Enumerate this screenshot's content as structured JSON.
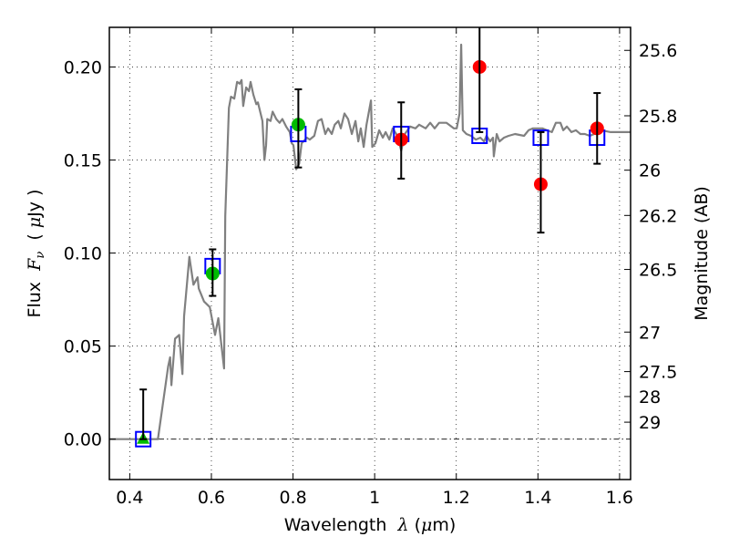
{
  "chart_data": {
    "type": "scatter",
    "title": "",
    "xlabel": "Wavelength  λ (μm)",
    "xlabel_parts": {
      "prefix": "Wavelength  ",
      "lambda": "λ",
      "suffix_open": " (",
      "mu": "μ",
      "suffix_close": "m)"
    },
    "ylabel_parts": {
      "prefix": "Flux  ",
      "var": "F",
      "sub": "ν",
      "open": "  ( ",
      "mu": "μ",
      "close": "Jy )"
    },
    "ylabel": "Flux  Fν  ( μJy )",
    "y2label": "Magnitude (AB)",
    "xlim": [
      0.35,
      1.627
    ],
    "ylim": [
      -0.0217,
      0.2213
    ],
    "grid": true,
    "x_ticks": [
      0.4,
      0.6,
      0.8,
      1.0,
      1.2,
      1.4,
      1.6
    ],
    "x_tick_labels": [
      "0.4",
      "0.6",
      "0.8",
      "1",
      "1.2",
      "1.4",
      "1.6"
    ],
    "y_ticks": [
      0.0,
      0.05,
      0.1,
      0.15,
      0.2
    ],
    "y_tick_labels": [
      "0.00",
      "0.05",
      "0.10",
      "0.15",
      "0.20"
    ],
    "y2_ticks_mag": [
      25.6,
      25.8,
      26,
      26.2,
      26.5,
      27,
      27.5,
      28,
      29
    ],
    "y2_tick_labels": [
      "25.6",
      "25.8",
      "26",
      "26.2",
      "26.5",
      "27",
      "27.5",
      "28",
      "29"
    ],
    "ab_zeropoint_ujy": 23.9,
    "zero_line": {
      "y": 0.0,
      "style": "dash-dot",
      "color": "#000000"
    },
    "colors": {
      "spectrum": "#808080",
      "model_box": "#0000ff",
      "detection_green": "#00bb00",
      "detection_red": "#ff0000",
      "errorbar": "#000000"
    },
    "series": [
      {
        "name": "model spectrum",
        "kind": "line",
        "x": [
          0.35,
          0.469,
          0.494,
          0.499,
          0.502,
          0.511,
          0.521,
          0.529,
          0.533,
          0.546,
          0.556,
          0.566,
          0.569,
          0.582,
          0.596,
          0.609,
          0.617,
          0.631,
          0.634,
          0.643,
          0.648,
          0.656,
          0.663,
          0.669,
          0.674,
          0.678,
          0.685,
          0.692,
          0.696,
          0.703,
          0.71,
          0.714,
          0.725,
          0.73,
          0.734,
          0.737,
          0.745,
          0.75,
          0.759,
          0.767,
          0.774,
          0.783,
          0.792,
          0.797,
          0.801,
          0.808,
          0.815,
          0.821,
          0.834,
          0.841,
          0.852,
          0.861,
          0.87,
          0.879,
          0.886,
          0.895,
          0.902,
          0.911,
          0.917,
          0.926,
          0.935,
          0.944,
          0.953,
          0.96,
          0.966,
          0.973,
          0.98,
          0.991,
          0.994,
          1.002,
          1.011,
          1.02,
          1.027,
          1.036,
          1.044,
          1.056,
          1.065,
          1.074,
          1.087,
          1.1,
          1.109,
          1.125,
          1.136,
          1.147,
          1.158,
          1.176,
          1.194,
          1.201,
          1.208,
          1.212,
          1.216,
          1.225,
          1.236,
          1.248,
          1.259,
          1.268,
          1.274,
          1.283,
          1.29,
          1.292,
          1.299,
          1.306,
          1.317,
          1.328,
          1.344,
          1.366,
          1.377,
          1.388,
          1.399,
          1.411,
          1.422,
          1.434,
          1.444,
          1.455,
          1.462,
          1.471,
          1.482,
          1.493,
          1.504,
          1.515,
          1.527,
          1.538,
          1.556,
          1.578,
          1.6,
          1.627
        ],
        "y": [
          0.0,
          0.0,
          0.039,
          0.044,
          0.029,
          0.054,
          0.056,
          0.035,
          0.066,
          0.098,
          0.083,
          0.087,
          0.081,
          0.074,
          0.071,
          0.056,
          0.065,
          0.038,
          0.12,
          0.178,
          0.184,
          0.183,
          0.192,
          0.191,
          0.193,
          0.179,
          0.189,
          0.187,
          0.192,
          0.185,
          0.18,
          0.181,
          0.171,
          0.15,
          0.158,
          0.172,
          0.171,
          0.176,
          0.172,
          0.17,
          0.172,
          0.168,
          0.165,
          0.159,
          0.158,
          0.145,
          0.148,
          0.159,
          0.162,
          0.161,
          0.163,
          0.171,
          0.172,
          0.164,
          0.167,
          0.164,
          0.169,
          0.171,
          0.167,
          0.175,
          0.172,
          0.164,
          0.171,
          0.16,
          0.167,
          0.157,
          0.169,
          0.182,
          0.157,
          0.159,
          0.166,
          0.162,
          0.165,
          0.161,
          0.167,
          0.163,
          0.155,
          0.164,
          0.168,
          0.167,
          0.169,
          0.167,
          0.17,
          0.167,
          0.17,
          0.17,
          0.167,
          0.167,
          0.175,
          0.212,
          0.166,
          0.164,
          0.163,
          0.161,
          0.162,
          0.16,
          0.163,
          0.16,
          0.162,
          0.152,
          0.164,
          0.16,
          0.162,
          0.163,
          0.164,
          0.163,
          0.166,
          0.167,
          0.167,
          0.167,
          0.166,
          0.165,
          0.17,
          0.17,
          0.166,
          0.168,
          0.165,
          0.166,
          0.164,
          0.164,
          0.163,
          0.164,
          0.166,
          0.165,
          0.165,
          0.165
        ]
      },
      {
        "name": "model band flux",
        "kind": "scatter",
        "marker": "open-square",
        "x": [
          0.433,
          0.603,
          0.813,
          1.065,
          1.257,
          1.407,
          1.545
        ],
        "y": [
          0.0,
          0.093,
          0.164,
          0.164,
          0.163,
          0.162,
          0.162
        ]
      },
      {
        "name": "observed photometry",
        "kind": "errorbar",
        "points": [
          {
            "x": 0.433,
            "y": 0.0,
            "err_low": 0.0,
            "err_high": 0.0267,
            "marker": "triangle",
            "color": "green"
          },
          {
            "x": 0.603,
            "y": 0.089,
            "err_low": 0.077,
            "err_high": 0.102,
            "marker": "circle",
            "color": "green"
          },
          {
            "x": 0.813,
            "y": 0.169,
            "err_low": 0.146,
            "err_high": 0.188,
            "marker": "circle",
            "color": "green"
          },
          {
            "x": 1.065,
            "y": 0.161,
            "err_low": 0.14,
            "err_high": 0.181,
            "marker": "circle",
            "color": "red"
          },
          {
            "x": 1.257,
            "y": 0.2,
            "err_low": 0.165,
            "err_high": 0.235,
            "marker": "circle",
            "color": "red"
          },
          {
            "x": 1.407,
            "y": 0.137,
            "err_low": 0.111,
            "err_high": 0.165,
            "marker": "circle",
            "color": "red"
          },
          {
            "x": 1.545,
            "y": 0.167,
            "err_low": 0.148,
            "err_high": 0.186,
            "marker": "circle",
            "color": "red"
          }
        ]
      }
    ]
  }
}
